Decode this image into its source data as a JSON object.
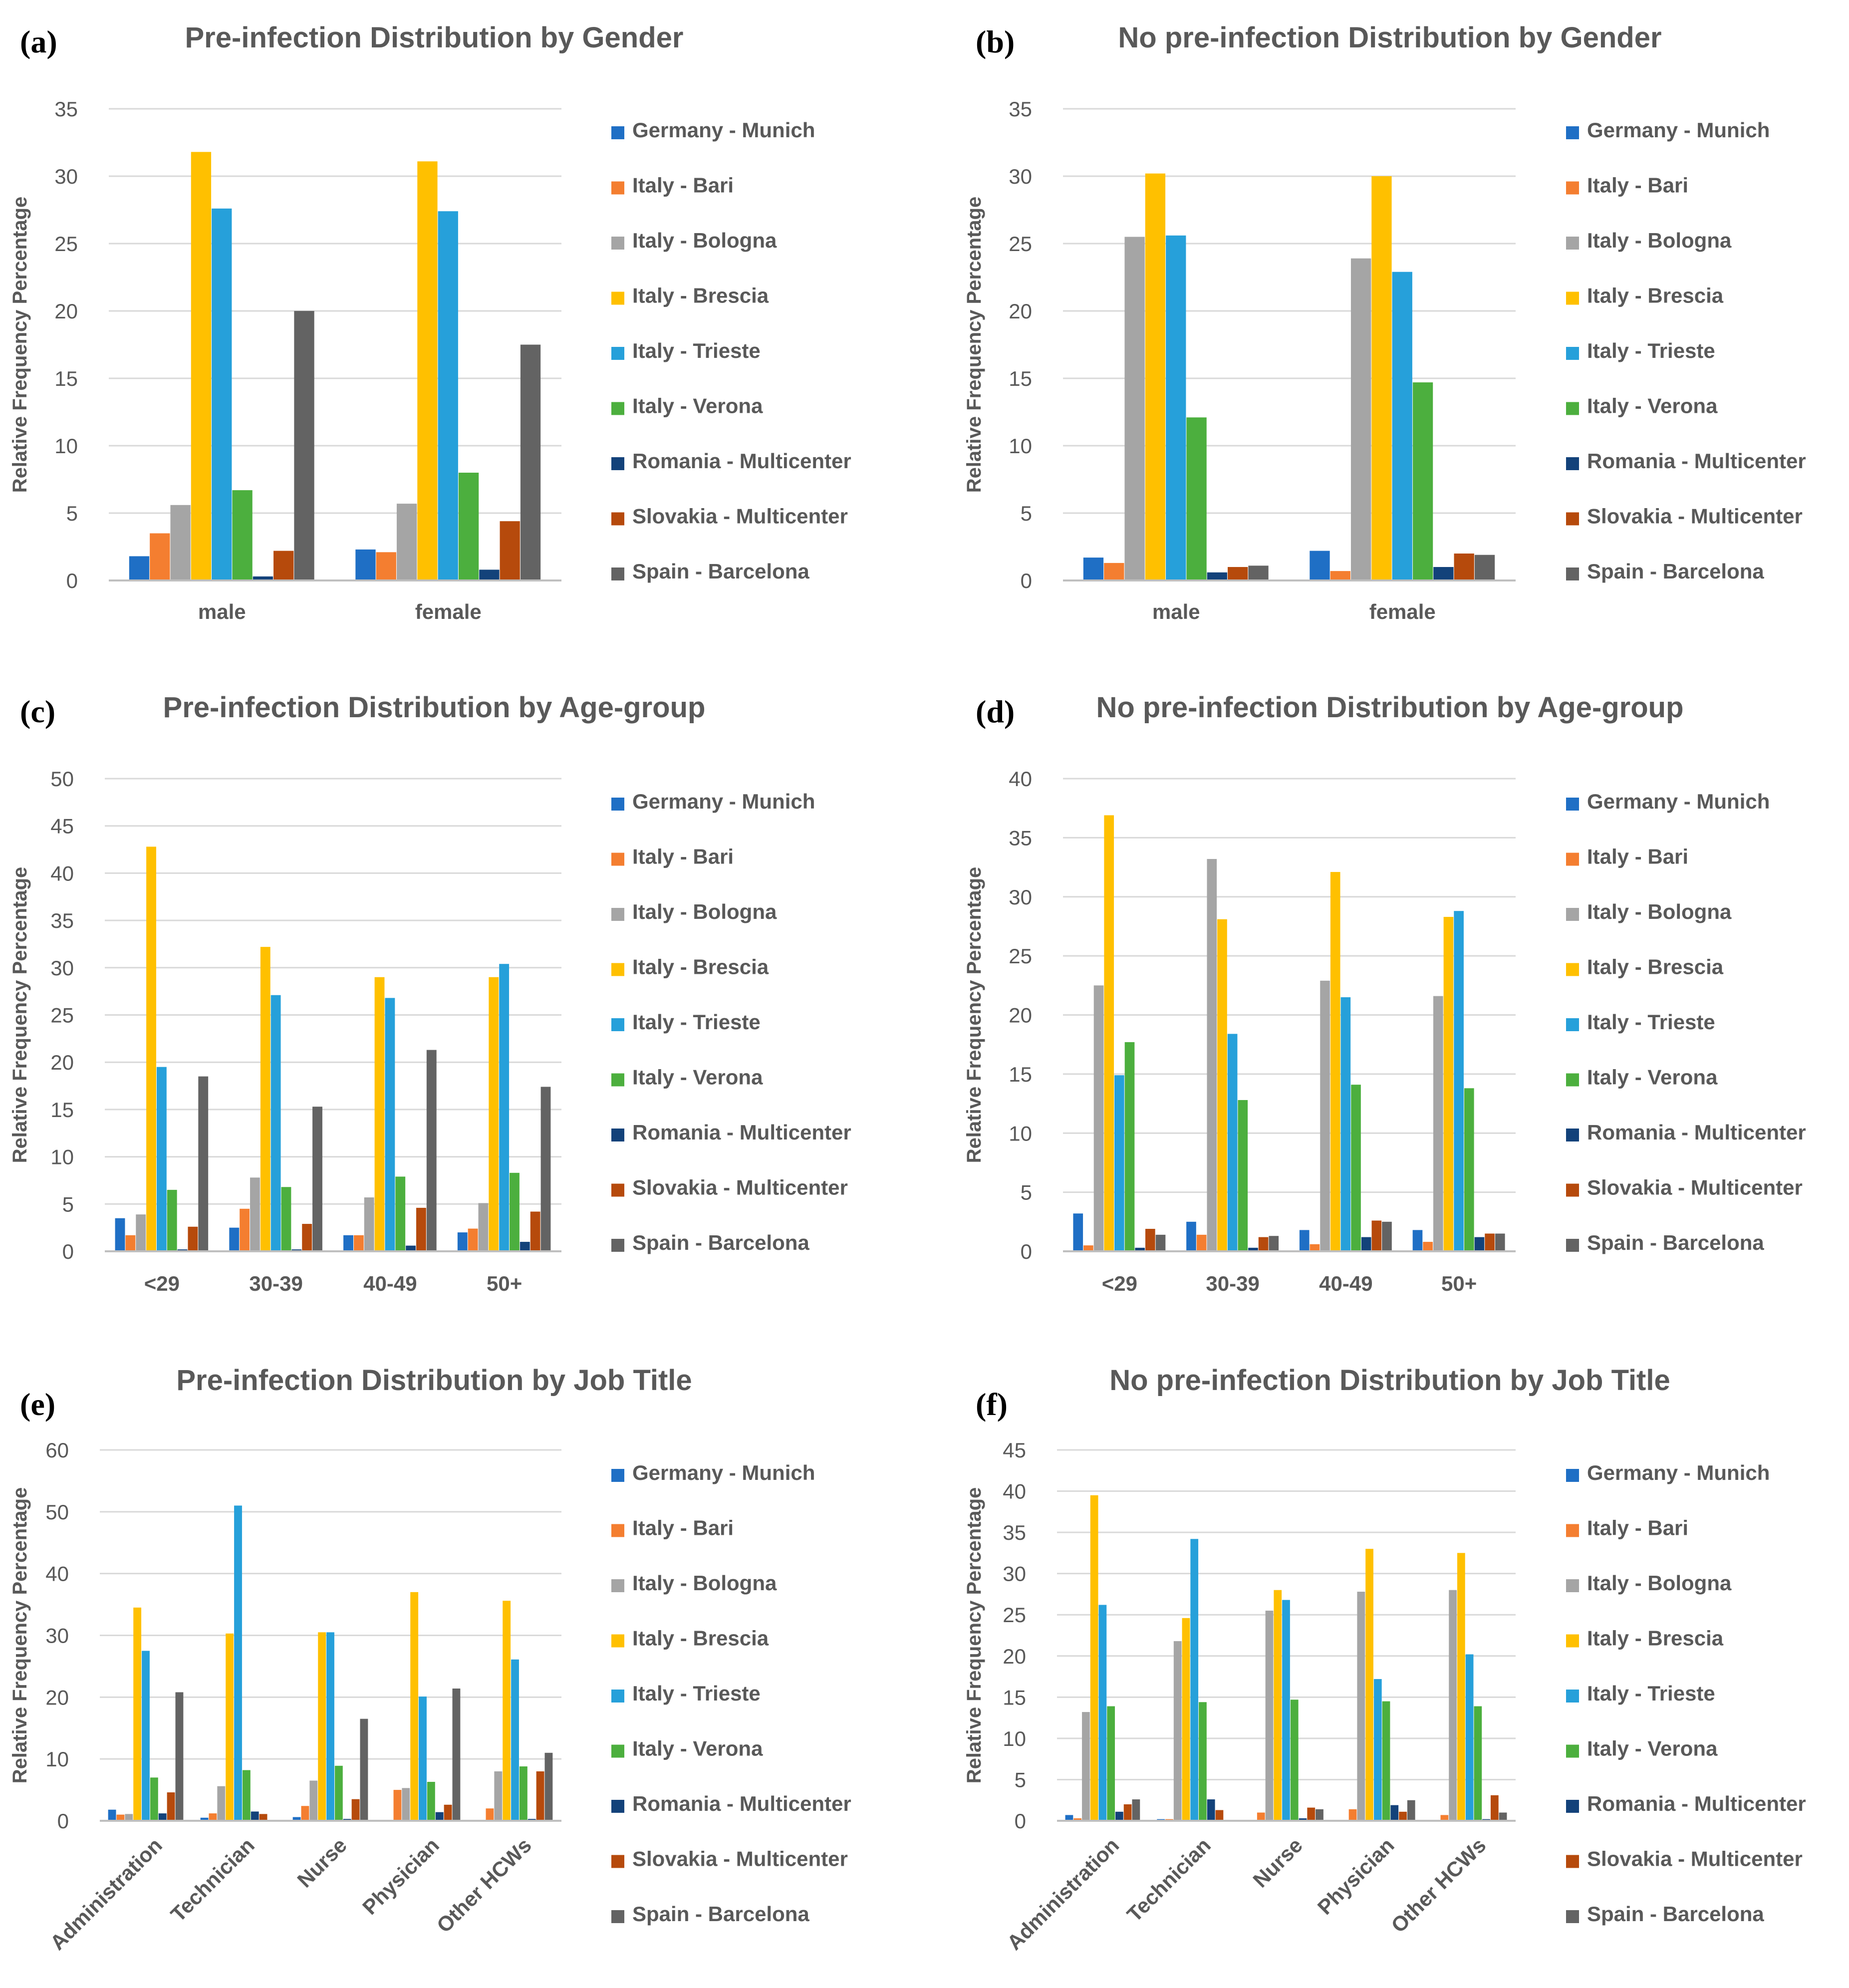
{
  "colors": {
    "Germany - Munich": "#1f6fc5",
    "Italy - Bari": "#f47e30",
    "Italy - Bologna": "#a5a5a5",
    "Italy - Brescia": "#ffc000",
    "Italy - Trieste": "#26a0da",
    "Italy - Verona": "#4caf3e",
    "Romania - Multicenter": "#13427a",
    "Slovakia - Multicenter": "#b64a0c",
    "Spain - Barcelona": "#636363"
  },
  "chart_data": [
    {
      "type": "bar",
      "panel": "(a)",
      "title": "Pre-infection Distribution by Gender",
      "ylabel": "Relative Frequency Percentage",
      "ylim": [
        0,
        35
      ],
      "yticks": [
        0,
        5,
        10,
        15,
        20,
        25,
        30,
        35
      ],
      "categories": [
        "male",
        "female"
      ],
      "series": [
        {
          "name": "Germany - Munich",
          "values": [
            1.8,
            2.3
          ]
        },
        {
          "name": "Italy - Bari",
          "values": [
            3.5,
            2.1
          ]
        },
        {
          "name": "Italy - Bologna",
          "values": [
            5.6,
            5.7
          ]
        },
        {
          "name": "Italy - Brescia",
          "values": [
            31.8,
            31.1
          ]
        },
        {
          "name": "Italy - Trieste",
          "values": [
            27.6,
            27.4
          ]
        },
        {
          "name": "Italy - Verona",
          "values": [
            6.7,
            8.0
          ]
        },
        {
          "name": "Romania - Multicenter",
          "values": [
            0.3,
            0.8
          ]
        },
        {
          "name": "Slovakia - Multicenter",
          "values": [
            2.2,
            4.4
          ]
        },
        {
          "name": "Spain - Barcelona",
          "values": [
            20.0,
            17.5
          ]
        }
      ]
    },
    {
      "type": "bar",
      "panel": "(b)",
      "title": "No pre-infection Distribution by Gender",
      "ylabel": "Relative Frequency Percentage",
      "ylim": [
        0,
        35
      ],
      "yticks": [
        0,
        5,
        10,
        15,
        20,
        25,
        30,
        35
      ],
      "categories": [
        "male",
        "female"
      ],
      "series": [
        {
          "name": "Germany - Munich",
          "values": [
            1.7,
            2.2
          ]
        },
        {
          "name": "Italy - Bari",
          "values": [
            1.3,
            0.7
          ]
        },
        {
          "name": "Italy - Bologna",
          "values": [
            25.5,
            23.9
          ]
        },
        {
          "name": "Italy - Brescia",
          "values": [
            30.2,
            30.0
          ]
        },
        {
          "name": "Italy - Trieste",
          "values": [
            25.6,
            22.9
          ]
        },
        {
          "name": "Italy - Verona",
          "values": [
            12.1,
            14.7
          ]
        },
        {
          "name": "Romania - Multicenter",
          "values": [
            0.6,
            1.0
          ]
        },
        {
          "name": "Slovakia - Multicenter",
          "values": [
            1.0,
            2.0
          ]
        },
        {
          "name": "Spain - Barcelona",
          "values": [
            1.1,
            1.9
          ]
        }
      ]
    },
    {
      "type": "bar",
      "panel": "(c)",
      "title": "Pre-infection Distribution by Age-group",
      "ylabel": "Relative Frequency Percentage",
      "ylim": [
        0,
        50
      ],
      "yticks": [
        0,
        5,
        10,
        15,
        20,
        25,
        30,
        35,
        40,
        45,
        50
      ],
      "categories": [
        "<29",
        "30-39",
        "40-49",
        "50+"
      ],
      "series": [
        {
          "name": "Germany - Munich",
          "values": [
            3.5,
            2.5,
            1.7,
            2.0
          ]
        },
        {
          "name": "Italy - Bari",
          "values": [
            1.7,
            4.5,
            1.7,
            2.4
          ]
        },
        {
          "name": "Italy - Bologna",
          "values": [
            3.9,
            7.8,
            5.7,
            5.1
          ]
        },
        {
          "name": "Italy - Brescia",
          "values": [
            42.8,
            32.2,
            29.0,
            29.0
          ]
        },
        {
          "name": "Italy - Trieste",
          "values": [
            19.5,
            27.1,
            26.8,
            30.4
          ]
        },
        {
          "name": "Italy - Verona",
          "values": [
            6.5,
            6.8,
            7.9,
            8.3
          ]
        },
        {
          "name": "Romania - Multicenter",
          "values": [
            0.2,
            0.2,
            0.6,
            1.0
          ]
        },
        {
          "name": "Slovakia - Multicenter",
          "values": [
            2.6,
            2.9,
            4.6,
            4.2
          ]
        },
        {
          "name": "Spain - Barcelona",
          "values": [
            18.5,
            15.3,
            21.3,
            17.4
          ]
        }
      ]
    },
    {
      "type": "bar",
      "panel": "(d)",
      "title": "No pre-infection Distribution by Age-group",
      "ylabel": "Relative Frequency Percentage",
      "ylim": [
        0,
        40
      ],
      "yticks": [
        0,
        5,
        10,
        15,
        20,
        25,
        30,
        35,
        40
      ],
      "categories": [
        "<29",
        "30-39",
        "40-49",
        "50+"
      ],
      "series": [
        {
          "name": "Germany - Munich",
          "values": [
            3.2,
            2.5,
            1.8,
            1.8
          ]
        },
        {
          "name": "Italy - Bari",
          "values": [
            0.5,
            1.4,
            0.6,
            0.8
          ]
        },
        {
          "name": "Italy - Bologna",
          "values": [
            22.5,
            33.2,
            22.9,
            21.6
          ]
        },
        {
          "name": "Italy - Brescia",
          "values": [
            36.9,
            28.1,
            32.1,
            28.3
          ]
        },
        {
          "name": "Italy - Trieste",
          "values": [
            14.9,
            18.4,
            21.5,
            28.8
          ]
        },
        {
          "name": "Italy - Verona",
          "values": [
            17.7,
            12.8,
            14.1,
            13.8
          ]
        },
        {
          "name": "Romania - Multicenter",
          "values": [
            0.3,
            0.3,
            1.2,
            1.2
          ]
        },
        {
          "name": "Slovakia - Multicenter",
          "values": [
            1.9,
            1.2,
            2.6,
            1.5
          ]
        },
        {
          "name": "Spain - Barcelona",
          "values": [
            1.4,
            1.3,
            2.5,
            1.5
          ]
        }
      ]
    },
    {
      "type": "bar",
      "panel": "(e)",
      "title": "Pre-infection Distribution by Job Title",
      "ylabel": "Relative Frequency Percentage",
      "ylim": [
        0,
        60
      ],
      "yticks": [
        0,
        10,
        20,
        30,
        40,
        50,
        60
      ],
      "rotated_labels": true,
      "categories": [
        "Administration",
        "Technician",
        "Nurse",
        "Physician",
        "Other HCWs"
      ],
      "series": [
        {
          "name": "Germany - Munich",
          "values": [
            1.8,
            0.5,
            0.6,
            0.0,
            0.0
          ]
        },
        {
          "name": "Italy - Bari",
          "values": [
            1.0,
            1.2,
            2.4,
            5.0,
            2.0
          ]
        },
        {
          "name": "Italy - Bologna",
          "values": [
            1.1,
            5.6,
            6.5,
            5.3,
            8.0
          ]
        },
        {
          "name": "Italy - Brescia",
          "values": [
            34.5,
            30.3,
            30.5,
            37.0,
            35.6
          ]
        },
        {
          "name": "Italy - Trieste",
          "values": [
            27.5,
            51.0,
            30.5,
            20.1,
            26.1
          ]
        },
        {
          "name": "Italy - Verona",
          "values": [
            7.0,
            8.2,
            8.9,
            6.3,
            8.8
          ]
        },
        {
          "name": "Romania - Multicenter",
          "values": [
            1.2,
            1.5,
            0.3,
            1.4,
            0.3
          ]
        },
        {
          "name": "Slovakia - Multicenter",
          "values": [
            4.6,
            1.1,
            3.5,
            2.6,
            8.0
          ]
        },
        {
          "name": "Spain - Barcelona",
          "values": [
            20.8,
            0.0,
            16.5,
            21.4,
            11.0
          ]
        }
      ]
    },
    {
      "type": "bar",
      "panel": "(f)",
      "title": "No pre-infection Distribution by Job Title",
      "ylabel": "Relative Frequency Percentage",
      "ylim": [
        0,
        45
      ],
      "yticks": [
        0,
        5,
        10,
        15,
        20,
        25,
        30,
        35,
        40,
        45
      ],
      "rotated_labels": true,
      "categories": [
        "Administration",
        "Technician",
        "Nurse",
        "Physician",
        "Other HCWs"
      ],
      "series": [
        {
          "name": "Germany - Munich",
          "values": [
            0.7,
            0.2,
            0.0,
            0.0,
            0.0
          ]
        },
        {
          "name": "Italy - Bari",
          "values": [
            0.3,
            0.2,
            1.0,
            1.4,
            0.7
          ]
        },
        {
          "name": "Italy - Bologna",
          "values": [
            13.2,
            21.8,
            25.5,
            27.8,
            28.0
          ]
        },
        {
          "name": "Italy - Brescia",
          "values": [
            39.5,
            24.6,
            28.0,
            33.0,
            32.5
          ]
        },
        {
          "name": "Italy - Trieste",
          "values": [
            26.2,
            34.2,
            26.8,
            17.2,
            20.2
          ]
        },
        {
          "name": "Italy - Verona",
          "values": [
            13.9,
            14.4,
            14.7,
            14.5,
            13.9
          ]
        },
        {
          "name": "Romania - Multicenter",
          "values": [
            1.1,
            2.6,
            0.3,
            1.9,
            0.2
          ]
        },
        {
          "name": "Slovakia - Multicenter",
          "values": [
            2.0,
            1.3,
            1.6,
            1.1,
            3.1
          ]
        },
        {
          "name": "Spain - Barcelona",
          "values": [
            2.6,
            0.0,
            1.4,
            2.5,
            1.0
          ]
        }
      ]
    }
  ]
}
